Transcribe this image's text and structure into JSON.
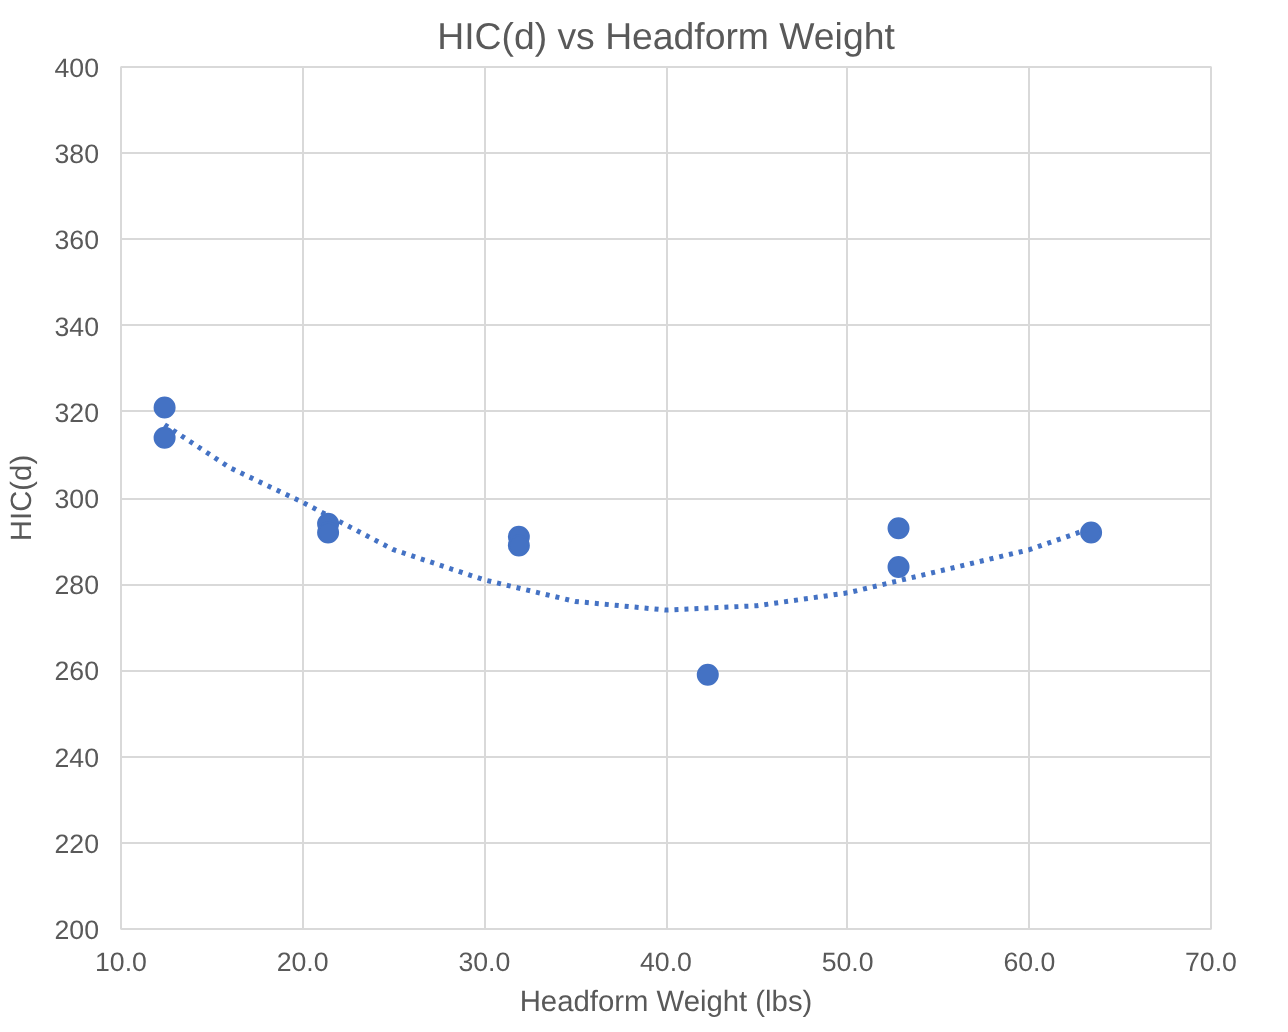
{
  "chart_data": {
    "type": "scatter",
    "title": "HIC(d) vs Headform Weight",
    "xlabel": "Headform Weight (lbs)",
    "ylabel": "HIC(d)",
    "xlim": [
      10,
      70
    ],
    "xticks": [
      {
        "value": 10,
        "label": "10.0"
      },
      {
        "value": 20,
        "label": "20.0"
      },
      {
        "value": 30,
        "label": "30.0"
      },
      {
        "value": 40,
        "label": "40.0"
      },
      {
        "value": 50,
        "label": "50.0"
      },
      {
        "value": 60,
        "label": "60.0"
      },
      {
        "value": 70,
        "label": "70.0"
      }
    ],
    "ylim": [
      200,
      400
    ],
    "yticks": [
      200,
      220,
      240,
      260,
      280,
      300,
      320,
      340,
      360,
      380,
      400
    ],
    "grid": true,
    "series": [
      {
        "color": "#4472c4",
        "marker": "circle",
        "x": [
          12.4,
          12.4,
          21.4,
          21.4,
          31.9,
          31.9,
          42.3,
          52.8,
          52.8,
          63.4
        ],
        "values": [
          321,
          314,
          294,
          292,
          291,
          289,
          259,
          293,
          284,
          292
        ]
      },
      {
        "type": "line",
        "color": "#4472c4",
        "line_style": "dotted",
        "marker": "none",
        "x": [
          12.4,
          16,
          20,
          25,
          30,
          35,
          40,
          45,
          50,
          55,
          60,
          63.4
        ],
        "values": [
          317,
          307,
          299,
          288,
          281,
          276,
          274,
          275,
          278,
          283,
          288,
          293
        ]
      }
    ]
  }
}
